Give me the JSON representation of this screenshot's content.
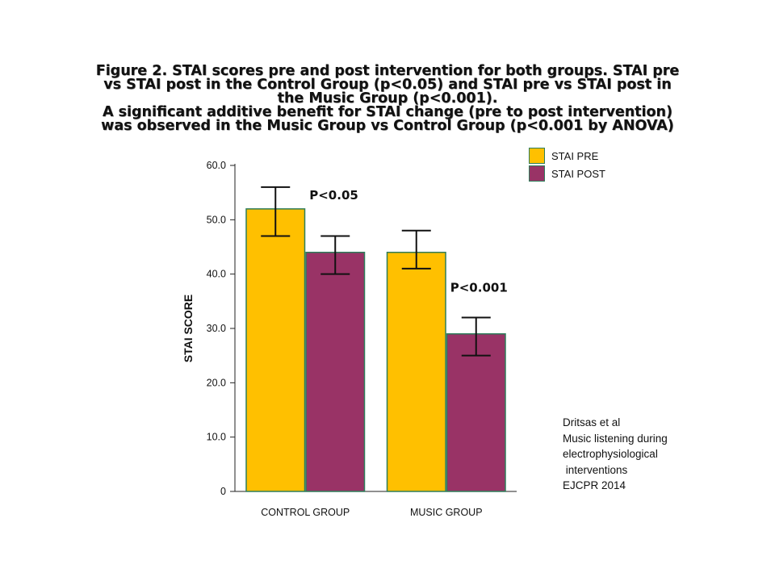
{
  "title_lines": [
    "Figure 2. STAI scores pre and post intervention for both groups. STAI pre",
    "vs STAI post in the Control Group (p<0.05) and STAI pre vs STAI post in",
    "the Music Group (p<0.001).",
    "A significant additive benefit for STAI change (pre to post intervention)",
    "was observed in the Music Group vs Control Group (p<0.001 by ANOVA)"
  ],
  "chart_data": {
    "type": "bar",
    "categories": [
      "CONTROL GROUP",
      "MUSIC GROUP"
    ],
    "series": [
      {
        "name": "STAI PRE",
        "values": [
          52,
          44
        ],
        "error_low": [
          47,
          41
        ],
        "error_high": [
          56,
          48
        ],
        "color": "#FFC000"
      },
      {
        "name": "STAI POST",
        "values": [
          44,
          29
        ],
        "error_low": [
          40,
          25
        ],
        "error_high": [
          47,
          32
        ],
        "color": "#993366"
      }
    ],
    "ylabel": "STAI  SCORE",
    "xlabel": "",
    "ylim": [
      0,
      60
    ],
    "y_ticks": [
      0,
      10,
      20,
      30,
      40,
      50,
      60
    ],
    "y_tick_labels": [
      "0",
      "10.0",
      "20.0",
      "30.0",
      "40.0",
      "50.0",
      "60.0"
    ],
    "annotations": [
      {
        "text": "P<0.05",
        "category_index": 0,
        "y": 54.5
      },
      {
        "text": "P<0.001",
        "category_index": 1,
        "y": 37.5
      }
    ],
    "bar_border_color": "#2e7d5a",
    "legend_position": "top-right",
    "grid": false
  },
  "source_note": [
    "Dritsas et al",
    "Music listening during",
    "electrophysiological",
    " interventions",
    "EJCPR 2014"
  ]
}
